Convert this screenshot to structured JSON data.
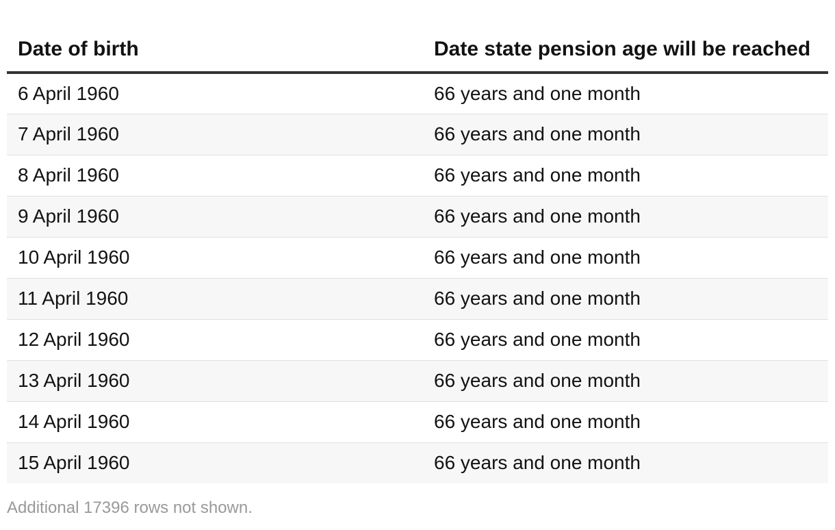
{
  "chart_data": {
    "type": "table",
    "columns": [
      "Date of birth",
      "Date state pension age will be reached"
    ],
    "rows": [
      [
        "6 April 1960",
        "66 years and one month"
      ],
      [
        "7 April 1960",
        "66 years and one month"
      ],
      [
        "8 April 1960",
        "66 years and one month"
      ],
      [
        "9 April 1960",
        "66 years and one month"
      ],
      [
        "10 April 1960",
        "66 years and one month"
      ],
      [
        "11 April 1960",
        "66 years and one month"
      ],
      [
        "12 April 1960",
        "66 years and one month"
      ],
      [
        "13 April 1960",
        "66 years and one month"
      ],
      [
        "14 April 1960",
        "66 years and one month"
      ],
      [
        "15 April 1960",
        "66 years and one month"
      ]
    ],
    "footnote": "Additional 17396 rows not shown."
  },
  "colors": {
    "header_rule": "#333333",
    "stripe": "#f7f7f7",
    "footnote": "#999999"
  }
}
